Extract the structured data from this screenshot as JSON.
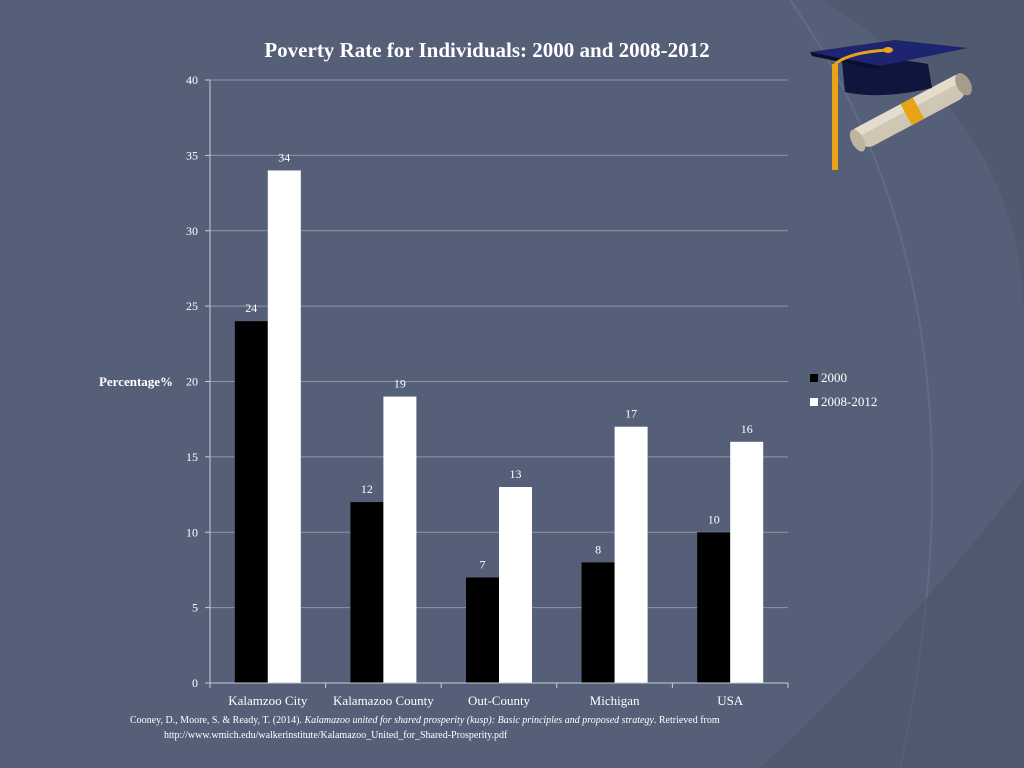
{
  "chart_data": {
    "type": "bar",
    "title": "Poverty Rate for Individuals: 2000 and 2008-2012",
    "ylabel": "Percentage%",
    "xlabel": "",
    "categories": [
      "Kalamzoo City",
      "Kalamazoo County",
      "Out-County",
      "Michigan",
      "USA"
    ],
    "series": [
      {
        "name": "2000",
        "values": [
          24,
          12,
          7,
          8,
          10
        ],
        "color": "#000000"
      },
      {
        "name": "2008-2012",
        "values": [
          34,
          19,
          13,
          17,
          16
        ],
        "color": "#ffffff"
      }
    ],
    "ylim": [
      0,
      40
    ],
    "yticks": [
      0,
      5,
      10,
      15,
      20,
      25,
      30,
      35,
      40
    ],
    "grid": true,
    "legend": "right",
    "data_labels": true
  },
  "citation": {
    "authors": "Cooney, D., Moore, S. & Ready, T. (2014). ",
    "work": "Kalamazoo united for shared prosperity (kusp): Basic principles and proposed strategy",
    "retrieved": ". Retrieved from",
    "url": "http://www.wmich.edu/walkerinstitute/Kalamazoo_United_for_Shared-Prosperity.pdf"
  },
  "decoration": {
    "icon": "graduation-cap-diploma-icon",
    "background_color": "#555f78",
    "accent_color": "#e8a317"
  }
}
